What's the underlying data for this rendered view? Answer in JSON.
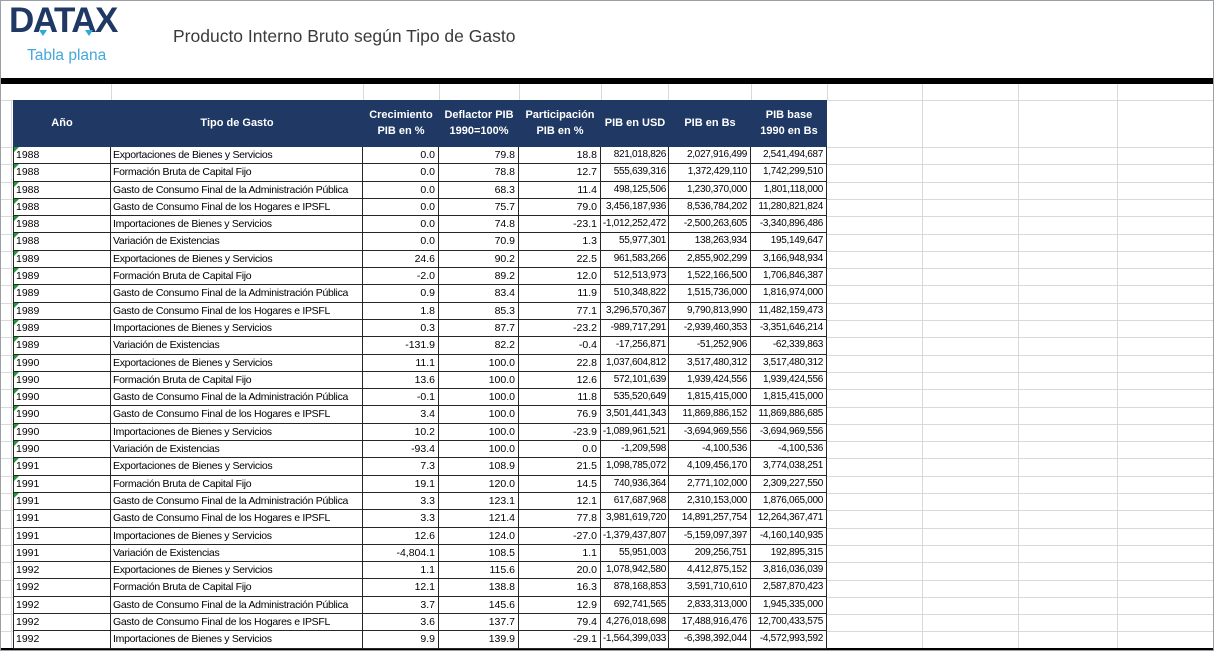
{
  "brand": {
    "logo": "DATAX",
    "tagline": "Tabla plana"
  },
  "title": "Producto Interno Bruto según Tipo de Gasto",
  "colors": {
    "header_bg": "#1F3864",
    "logo_navy": "#1F3864",
    "logo_blue": "#45A7DB",
    "indicator_green": "#1e9b3b",
    "gridline": "#d9d9d9"
  },
  "table": {
    "columns": [
      {
        "key": "year",
        "label": "Año"
      },
      {
        "key": "tipo",
        "label": "Tipo de Gasto"
      },
      {
        "key": "crecimiento",
        "label": "Crecimiento\nPIB en %"
      },
      {
        "key": "deflactor",
        "label": "Deflactor PIB\n1990=100%"
      },
      {
        "key": "participacion",
        "label": "Participación\nPIB en %"
      },
      {
        "key": "pib_usd",
        "label": "PIB en USD"
      },
      {
        "key": "pib_bs",
        "label": "PIB en Bs"
      },
      {
        "key": "pib_base",
        "label": "PIB base\n1990 en Bs"
      }
    ],
    "rows": [
      {
        "year": "1988",
        "tipo": "Exportaciones de Bienes y Servicios",
        "crecimiento": "0.0",
        "deflactor": "79.8",
        "participacion": "18.8",
        "pib_usd": "821,018,826",
        "pib_bs": "2,027,916,499",
        "pib_base": "2,541,494,687",
        "indicator": true
      },
      {
        "year": "1988",
        "tipo": "Formación Bruta de Capital Fijo",
        "crecimiento": "0.0",
        "deflactor": "78.8",
        "participacion": "12.7",
        "pib_usd": "555,639,316",
        "pib_bs": "1,372,429,110",
        "pib_base": "1,742,299,510",
        "indicator": true
      },
      {
        "year": "1988",
        "tipo": "Gasto de Consumo Final de la Administración Pública",
        "crecimiento": "0.0",
        "deflactor": "68.3",
        "participacion": "11.4",
        "pib_usd": "498,125,506",
        "pib_bs": "1,230,370,000",
        "pib_base": "1,801,118,000",
        "indicator": true
      },
      {
        "year": "1988",
        "tipo": "Gasto de Consumo Final de los Hogares e IPSFL",
        "crecimiento": "0.0",
        "deflactor": "75.7",
        "participacion": "79.0",
        "pib_usd": "3,456,187,936",
        "pib_bs": "8,536,784,202",
        "pib_base": "11,280,821,824",
        "indicator": true
      },
      {
        "year": "1988",
        "tipo": "Importaciones de Bienes y Servicios",
        "crecimiento": "0.0",
        "deflactor": "74.8",
        "participacion": "-23.1",
        "pib_usd": "-1,012,252,472",
        "pib_bs": "-2,500,263,605",
        "pib_base": "-3,340,896,486",
        "indicator": true
      },
      {
        "year": "1988",
        "tipo": "Variación de Existencias",
        "crecimiento": "0.0",
        "deflactor": "70.9",
        "participacion": "1.3",
        "pib_usd": "55,977,301",
        "pib_bs": "138,263,934",
        "pib_base": "195,149,647",
        "indicator": true
      },
      {
        "year": "1989",
        "tipo": "Exportaciones de Bienes y Servicios",
        "crecimiento": "24.6",
        "deflactor": "90.2",
        "participacion": "22.5",
        "pib_usd": "961,583,266",
        "pib_bs": "2,855,902,299",
        "pib_base": "3,166,948,934",
        "indicator": true
      },
      {
        "year": "1989",
        "tipo": "Formación Bruta de Capital Fijo",
        "crecimiento": "-2.0",
        "deflactor": "89.2",
        "participacion": "12.0",
        "pib_usd": "512,513,973",
        "pib_bs": "1,522,166,500",
        "pib_base": "1,706,846,387",
        "indicator": true
      },
      {
        "year": "1989",
        "tipo": "Gasto de Consumo Final de la Administración Pública",
        "crecimiento": "0.9",
        "deflactor": "83.4",
        "participacion": "11.9",
        "pib_usd": "510,348,822",
        "pib_bs": "1,515,736,000",
        "pib_base": "1,816,974,000",
        "indicator": true
      },
      {
        "year": "1989",
        "tipo": "Gasto de Consumo Final de los Hogares e IPSFL",
        "crecimiento": "1.8",
        "deflactor": "85.3",
        "participacion": "77.1",
        "pib_usd": "3,296,570,367",
        "pib_bs": "9,790,813,990",
        "pib_base": "11,482,159,473",
        "indicator": true
      },
      {
        "year": "1989",
        "tipo": "Importaciones de Bienes y Servicios",
        "crecimiento": "0.3",
        "deflactor": "87.7",
        "participacion": "-23.2",
        "pib_usd": "-989,717,291",
        "pib_bs": "-2,939,460,353",
        "pib_base": "-3,351,646,214",
        "indicator": true
      },
      {
        "year": "1989",
        "tipo": "Variación de Existencias",
        "crecimiento": "-131.9",
        "deflactor": "82.2",
        "participacion": "-0.4",
        "pib_usd": "-17,256,871",
        "pib_bs": "-51,252,906",
        "pib_base": "-62,339,863",
        "indicator": true
      },
      {
        "year": "1990",
        "tipo": "Exportaciones de Bienes y Servicios",
        "crecimiento": "11.1",
        "deflactor": "100.0",
        "participacion": "22.8",
        "pib_usd": "1,037,604,812",
        "pib_bs": "3,517,480,312",
        "pib_base": "3,517,480,312",
        "indicator": true
      },
      {
        "year": "1990",
        "tipo": "Formación Bruta de Capital Fijo",
        "crecimiento": "13.6",
        "deflactor": "100.0",
        "participacion": "12.6",
        "pib_usd": "572,101,639",
        "pib_bs": "1,939,424,556",
        "pib_base": "1,939,424,556",
        "indicator": true
      },
      {
        "year": "1990",
        "tipo": "Gasto de Consumo Final de la Administración Pública",
        "crecimiento": "-0.1",
        "deflactor": "100.0",
        "participacion": "11.8",
        "pib_usd": "535,520,649",
        "pib_bs": "1,815,415,000",
        "pib_base": "1,815,415,000",
        "indicator": true
      },
      {
        "year": "1990",
        "tipo": "Gasto de Consumo Final de los Hogares e IPSFL",
        "crecimiento": "3.4",
        "deflactor": "100.0",
        "participacion": "76.9",
        "pib_usd": "3,501,441,343",
        "pib_bs": "11,869,886,152",
        "pib_base": "11,869,886,685",
        "indicator": true
      },
      {
        "year": "1990",
        "tipo": "Importaciones de Bienes y Servicios",
        "crecimiento": "10.2",
        "deflactor": "100.0",
        "participacion": "-23.9",
        "pib_usd": "-1,089,961,521",
        "pib_bs": "-3,694,969,556",
        "pib_base": "-3,694,969,556",
        "indicator": true
      },
      {
        "year": "1990",
        "tipo": "Variación de Existencias",
        "crecimiento": "-93.4",
        "deflactor": "100.0",
        "participacion": "0.0",
        "pib_usd": "-1,209,598",
        "pib_bs": "-4,100,536",
        "pib_base": "-4,100,536",
        "indicator": true
      },
      {
        "year": "1991",
        "tipo": "Exportaciones de Bienes y Servicios",
        "crecimiento": "7.3",
        "deflactor": "108.9",
        "participacion": "21.5",
        "pib_usd": "1,098,785,072",
        "pib_bs": "4,109,456,170",
        "pib_base": "3,774,038,251",
        "indicator": true
      },
      {
        "year": "1991",
        "tipo": "Formación Bruta de Capital Fijo",
        "crecimiento": "19.1",
        "deflactor": "120.0",
        "participacion": "14.5",
        "pib_usd": "740,936,364",
        "pib_bs": "2,771,102,000",
        "pib_base": "2,309,227,550",
        "indicator": true
      },
      {
        "year": "1991",
        "tipo": "Gasto de Consumo Final de la Administración Pública",
        "crecimiento": "3.3",
        "deflactor": "123.1",
        "participacion": "12.1",
        "pib_usd": "617,687,968",
        "pib_bs": "2,310,153,000",
        "pib_base": "1,876,065,000",
        "indicator": true
      },
      {
        "year": "1991",
        "tipo": "Gasto de Consumo Final de los Hogares e IPSFL",
        "crecimiento": "3.3",
        "deflactor": "121.4",
        "participacion": "77.8",
        "pib_usd": "3,981,619,720",
        "pib_bs": "14,891,257,754",
        "pib_base": "12,264,367,471",
        "indicator": false
      },
      {
        "year": "1991",
        "tipo": "Importaciones de Bienes y Servicios",
        "crecimiento": "12.6",
        "deflactor": "124.0",
        "participacion": "-27.0",
        "pib_usd": "-1,379,437,807",
        "pib_bs": "-5,159,097,397",
        "pib_base": "-4,160,140,935",
        "indicator": false
      },
      {
        "year": "1991",
        "tipo": "Variación de Existencias",
        "crecimiento": "-4,804.1",
        "deflactor": "108.5",
        "participacion": "1.1",
        "pib_usd": "55,951,003",
        "pib_bs": "209,256,751",
        "pib_base": "192,895,315",
        "indicator": false
      },
      {
        "year": "1992",
        "tipo": "Exportaciones de Bienes y Servicios",
        "crecimiento": "1.1",
        "deflactor": "115.6",
        "participacion": "20.0",
        "pib_usd": "1,078,942,580",
        "pib_bs": "4,412,875,152",
        "pib_base": "3,816,036,039",
        "indicator": false
      },
      {
        "year": "1992",
        "tipo": "Formación Bruta de Capital Fijo",
        "crecimiento": "12.1",
        "deflactor": "138.8",
        "participacion": "16.3",
        "pib_usd": "878,168,853",
        "pib_bs": "3,591,710,610",
        "pib_base": "2,587,870,423",
        "indicator": false
      },
      {
        "year": "1992",
        "tipo": "Gasto de Consumo Final de la Administración Pública",
        "crecimiento": "3.7",
        "deflactor": "145.6",
        "participacion": "12.9",
        "pib_usd": "692,741,565",
        "pib_bs": "2,833,313,000",
        "pib_base": "1,945,335,000",
        "indicator": false
      },
      {
        "year": "1992",
        "tipo": "Gasto de Consumo Final de los Hogares e IPSFL",
        "crecimiento": "3.6",
        "deflactor": "137.7",
        "participacion": "79.4",
        "pib_usd": "4,276,018,698",
        "pib_bs": "17,488,916,476",
        "pib_base": "12,700,433,575",
        "indicator": false
      },
      {
        "year": "1992",
        "tipo": "Importaciones de Bienes y Servicios",
        "crecimiento": "9.9",
        "deflactor": "139.9",
        "participacion": "-29.1",
        "pib_usd": "-1,564,399,033",
        "pib_bs": "-6,398,392,044",
        "pib_base": "-4,572,993,592",
        "indicator": false
      }
    ]
  }
}
